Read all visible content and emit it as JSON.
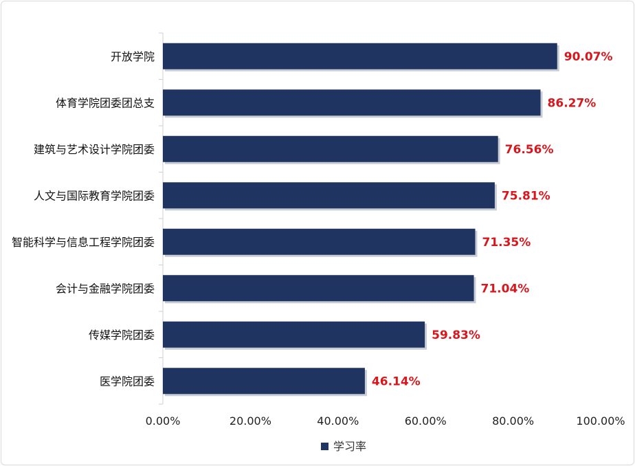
{
  "chart_data": {
    "type": "bar",
    "orientation": "horizontal",
    "categories": [
      "开放学院",
      "体育学院团委团总支",
      "建筑与艺术设计学院团委",
      "人文与国际教育学院团委",
      "智能科学与信息工程学院团委",
      "会计与金融学院团委",
      "传媒学院团委",
      "医学院团委"
    ],
    "series": [
      {
        "name": "学习率",
        "values": [
          90.07,
          86.27,
          76.56,
          75.81,
          71.35,
          71.04,
          59.83,
          46.14
        ],
        "value_labels": [
          "90.07%",
          "86.27%",
          "76.56%",
          "75.81%",
          "71.35%",
          "71.04%",
          "59.83%",
          "46.14%"
        ],
        "color": "#1f3461"
      }
    ],
    "xlim": [
      0,
      100
    ],
    "x_ticks": [
      0,
      20,
      40,
      60,
      80,
      100
    ],
    "x_tick_labels": [
      "0.00%",
      "20.00%",
      "40.00%",
      "60.00%",
      "80.00%",
      "100.00%"
    ],
    "value_label_color": "#d9161c",
    "grid": false,
    "legend_position": "bottom",
    "title": "",
    "xlabel": "",
    "ylabel": ""
  }
}
